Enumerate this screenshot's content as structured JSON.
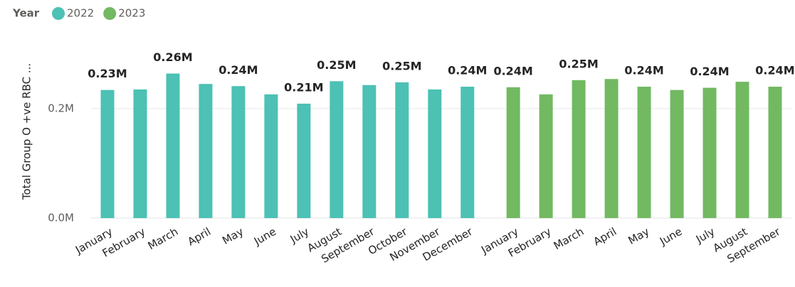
{
  "chart_data": {
    "type": "bar",
    "y_label": "Total Group O +ve RBC ...",
    "legend_title": "Year",
    "series": [
      {
        "name": "2022",
        "color": "#4cc1b4",
        "categories": [
          "January",
          "February",
          "March",
          "April",
          "May",
          "June",
          "July",
          "August",
          "September",
          "October",
          "November",
          "December"
        ],
        "values": [
          234000,
          235000,
          264000,
          245000,
          241000,
          226000,
          209000,
          250000,
          243000,
          248000,
          235000,
          240000
        ],
        "value_labels": [
          "0.23M",
          null,
          "0.26M",
          null,
          "0.24M",
          null,
          "0.21M",
          "0.25M",
          null,
          "0.25M",
          null,
          "0.24M"
        ]
      },
      {
        "name": "2023",
        "color": "#72b962",
        "categories": [
          "January",
          "February",
          "March",
          "April",
          "May",
          "June",
          "July",
          "August",
          "September"
        ],
        "values": [
          239000,
          226000,
          252000,
          254000,
          240000,
          234000,
          238000,
          249000,
          240000
        ],
        "value_labels": [
          "0.24M",
          null,
          "0.25M",
          null,
          "0.24M",
          null,
          "0.24M",
          null,
          "0.24M"
        ]
      }
    ],
    "ylim": [
      0,
      314000
    ],
    "yticks": [
      {
        "value": 0,
        "label": "0.0M"
      },
      {
        "value": 200000,
        "label": "0.2M"
      }
    ],
    "grid": true
  }
}
